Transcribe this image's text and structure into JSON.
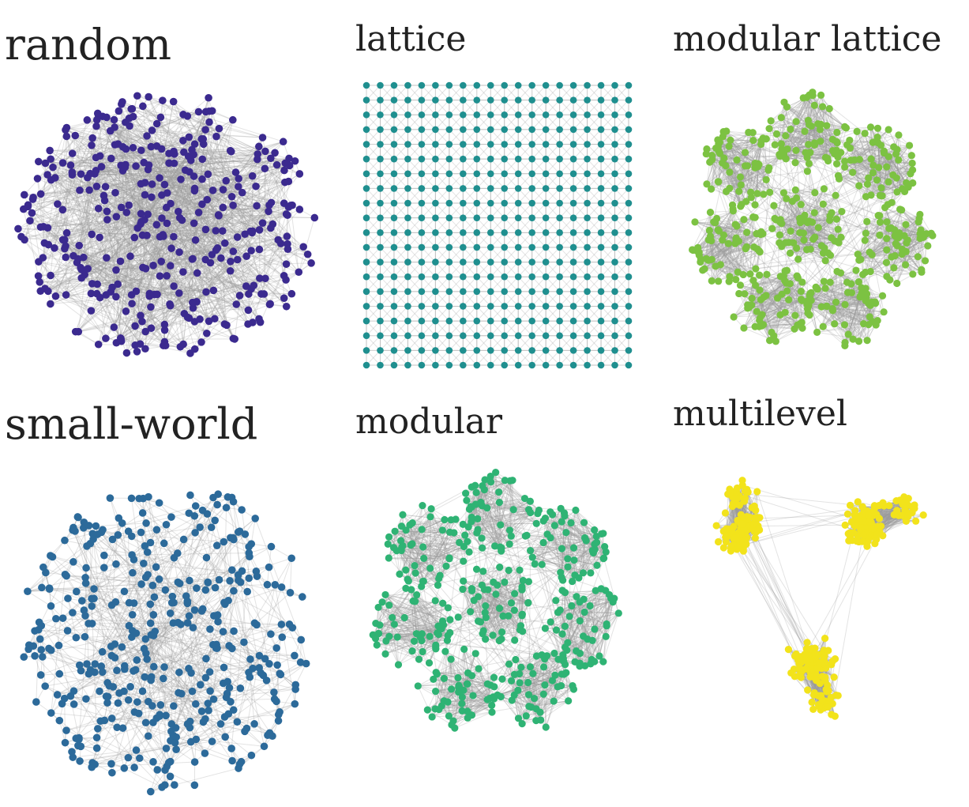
{
  "panels": [
    {
      "id": "random",
      "title": "random",
      "color": "#3b2a8f",
      "layout": "circle-disc",
      "node_count": 400
    },
    {
      "id": "lattice",
      "title": "lattice",
      "color": "#1f8f8f",
      "layout": "grid",
      "grid_size": 20
    },
    {
      "id": "modular-lattice",
      "title": "modular lattice",
      "color": "#7cc242",
      "layout": "modules-ring",
      "module_count": 8,
      "node_count": 480
    },
    {
      "id": "small-world",
      "title": "small-world",
      "color": "#2c6a9a",
      "layout": "polygon-disc",
      "node_count": 420
    },
    {
      "id": "modular",
      "title": "modular",
      "color": "#2fb374",
      "layout": "modules-ring",
      "module_count": 8,
      "node_count": 400
    },
    {
      "id": "multilevel",
      "title": "multilevel",
      "color": "#f2e31b",
      "layout": "three-clusters",
      "module_count": 3,
      "node_count": 360
    }
  ],
  "edge_color": "#9a9a9a"
}
